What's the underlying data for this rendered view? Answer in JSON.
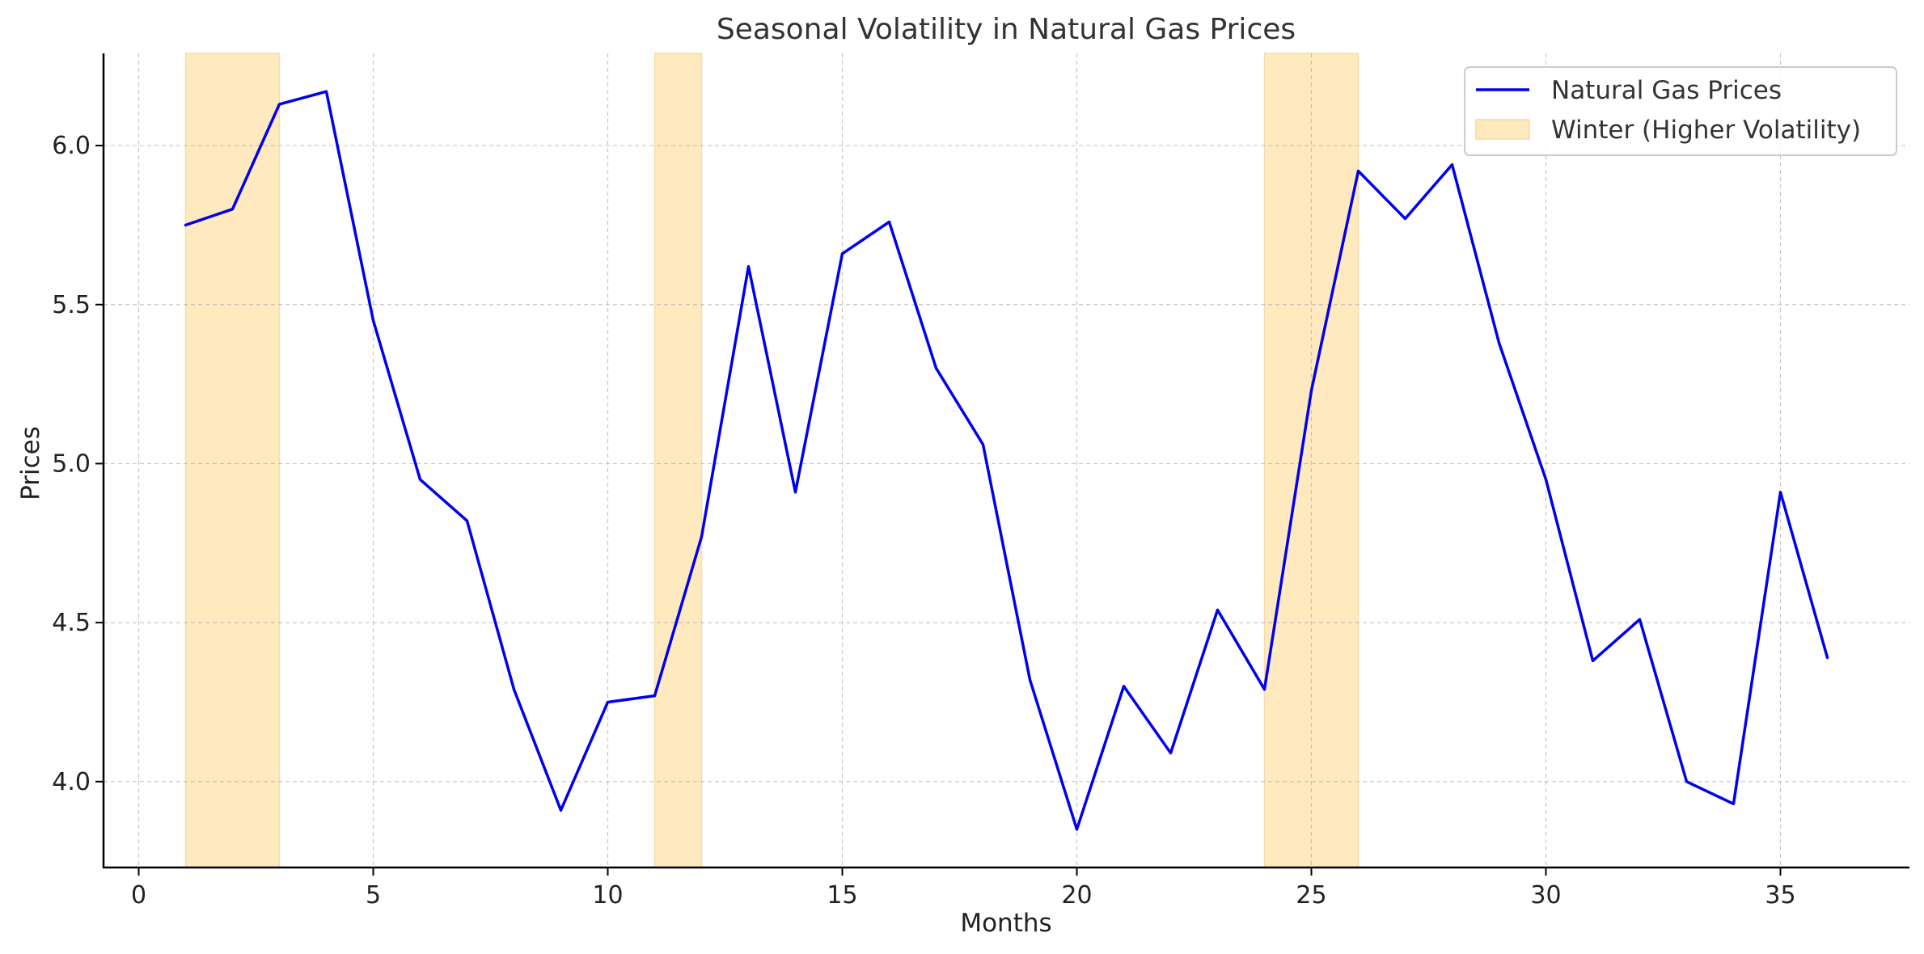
{
  "chart_data": {
    "type": "line",
    "title": "Seasonal Volatility in Natural Gas Prices",
    "xlabel": "Months",
    "ylabel": "Prices",
    "xlim": [
      -0.75,
      37.75
    ],
    "ylim": [
      3.73,
      6.29
    ],
    "xticks": [
      0,
      5,
      10,
      15,
      20,
      25,
      30,
      35
    ],
    "xtick_labels": [
      "0",
      "5",
      "10",
      "15",
      "20",
      "25",
      "30",
      "35"
    ],
    "yticks": [
      4.0,
      4.5,
      5.0,
      5.5,
      6.0
    ],
    "ytick_labels": [
      "4.0",
      "4.5",
      "5.0",
      "5.5",
      "6.0"
    ],
    "grid": true,
    "legend_position": "top-right",
    "series": [
      {
        "name": "Natural Gas Prices",
        "color": "#0000ee",
        "x": [
          1,
          2,
          3,
          4,
          5,
          6,
          7,
          8,
          9,
          10,
          11,
          12,
          13,
          14,
          15,
          16,
          17,
          18,
          19,
          20,
          21,
          22,
          23,
          24,
          25,
          26,
          27,
          28,
          29,
          30,
          31,
          32,
          33,
          34,
          35,
          36
        ],
        "values": [
          5.75,
          5.8,
          6.13,
          6.17,
          5.45,
          4.95,
          4.82,
          4.29,
          3.91,
          4.25,
          4.27,
          4.77,
          5.62,
          4.91,
          5.66,
          5.76,
          5.3,
          5.06,
          4.32,
          3.85,
          4.3,
          4.09,
          4.54,
          4.29,
          5.23,
          5.92,
          5.77,
          5.94,
          5.38,
          4.95,
          4.38,
          4.51,
          4.0,
          3.93,
          4.91,
          4.39
        ]
      }
    ],
    "shaded_regions": {
      "name": "Winter (Higher Volatility)",
      "color": "#ffe9bf",
      "ranges": [
        [
          1,
          3
        ],
        [
          11,
          12
        ],
        [
          24,
          26
        ]
      ]
    }
  }
}
